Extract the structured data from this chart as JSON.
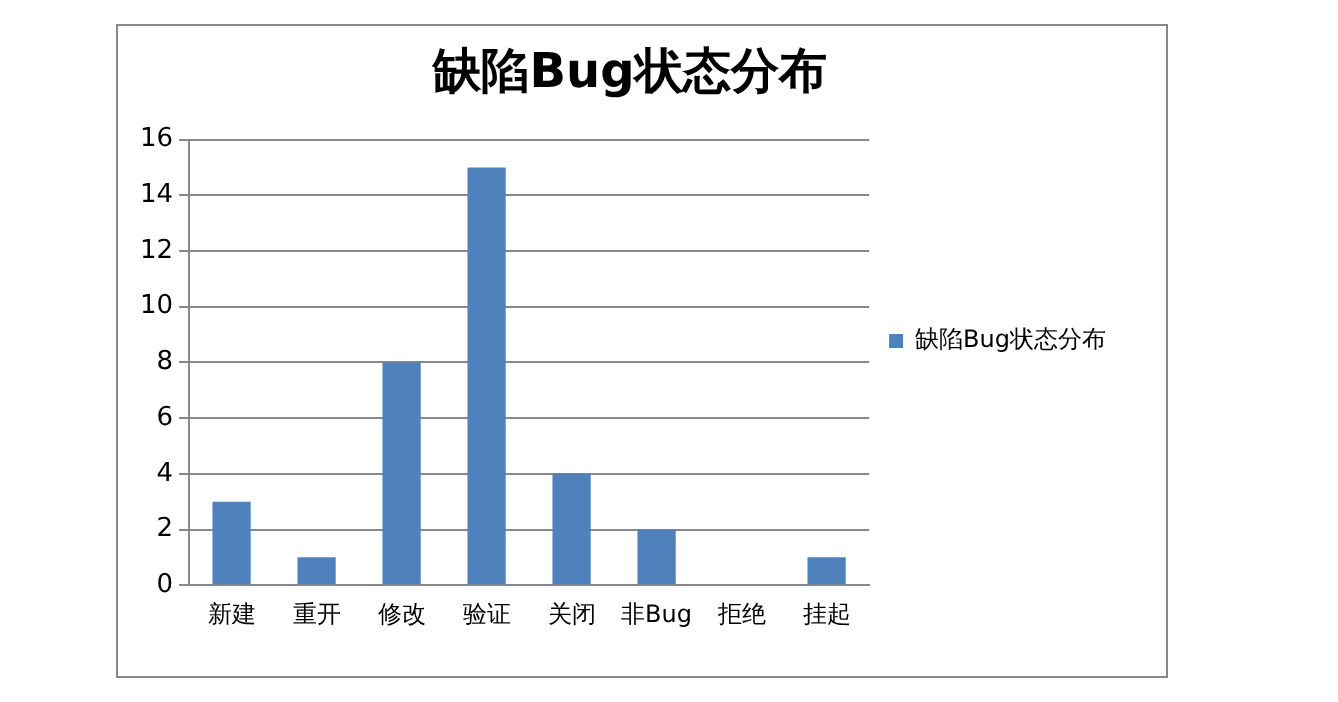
{
  "chart_data": {
    "type": "bar",
    "title": "缺陷Bug状态分布",
    "categories": [
      "新建",
      "重开",
      "修改",
      "验证",
      "关闭",
      "非Bug",
      "拒绝",
      "挂起"
    ],
    "series": [
      {
        "name": "缺陷Bug状态分布",
        "color": "#4f81bd",
        "values": [
          3,
          1,
          8,
          15,
          4,
          2,
          0,
          1
        ]
      }
    ],
    "ylim": [
      0,
      16
    ],
    "yticks": [
      0,
      2,
      4,
      6,
      8,
      10,
      12,
      14,
      16
    ],
    "grid": "y",
    "legend": "right"
  }
}
